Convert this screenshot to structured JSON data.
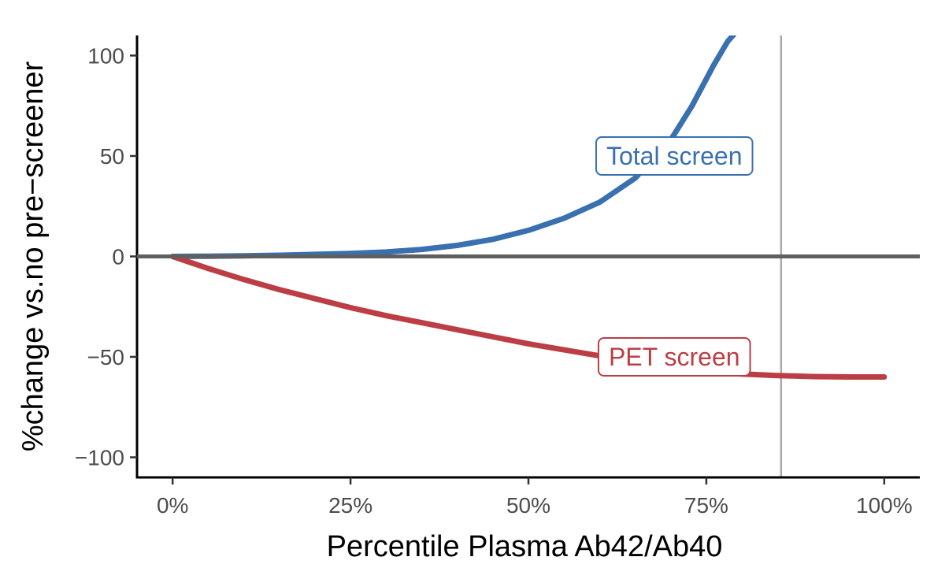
{
  "chart_data": {
    "type": "line",
    "title": "",
    "xlabel": "Percentile Plasma Ab42/Ab40",
    "ylabel": "%change vs.no pre−screener",
    "xlim": [
      -0.05,
      1.05
    ],
    "ylim": [
      -110,
      110
    ],
    "x_ticks": [
      0,
      0.25,
      0.5,
      0.75,
      1.0
    ],
    "x_tick_labels": [
      "0%",
      "25%",
      "50%",
      "75%",
      "100%"
    ],
    "y_ticks": [
      -100,
      -50,
      0,
      50,
      100
    ],
    "y_tick_labels": [
      "−100",
      "−50",
      "0",
      "50",
      "100"
    ],
    "grid": false,
    "reference_lines": {
      "horizontal_y": 0,
      "vertical_x": 0.855
    },
    "series": [
      {
        "name": "Total screen",
        "color": "#3a70b0",
        "x": [
          0,
          0.05,
          0.1,
          0.15,
          0.2,
          0.25,
          0.3,
          0.35,
          0.4,
          0.45,
          0.5,
          0.55,
          0.6,
          0.65,
          0.7,
          0.73,
          0.76,
          0.78,
          0.8
        ],
        "y": [
          0,
          0.1,
          0.3,
          0.6,
          1.0,
          1.5,
          2.2,
          3.5,
          5.5,
          8.5,
          13,
          19,
          27,
          39,
          58,
          75,
          95,
          107,
          115
        ]
      },
      {
        "name": "PET screen",
        "color": "#bc3e45",
        "x": [
          0,
          0.05,
          0.1,
          0.15,
          0.2,
          0.25,
          0.3,
          0.35,
          0.4,
          0.45,
          0.5,
          0.55,
          0.6,
          0.65,
          0.7,
          0.75,
          0.8,
          0.85,
          0.9,
          0.95,
          1.0
        ],
        "y": [
          0,
          -6,
          -11.5,
          -16.5,
          -21,
          -25.5,
          -29.5,
          -33,
          -36.5,
          -40,
          -43.5,
          -46.5,
          -49.5,
          -52.5,
          -55,
          -57,
          -58.5,
          -59.3,
          -59.8,
          -60,
          -60
        ]
      }
    ],
    "annotations": [
      {
        "text": "Total screen",
        "x": 0.705,
        "y": 50,
        "color": "#3a70b0"
      },
      {
        "text": "PET screen",
        "x": 0.705,
        "y": -50,
        "color": "#bc3e45"
      }
    ]
  }
}
